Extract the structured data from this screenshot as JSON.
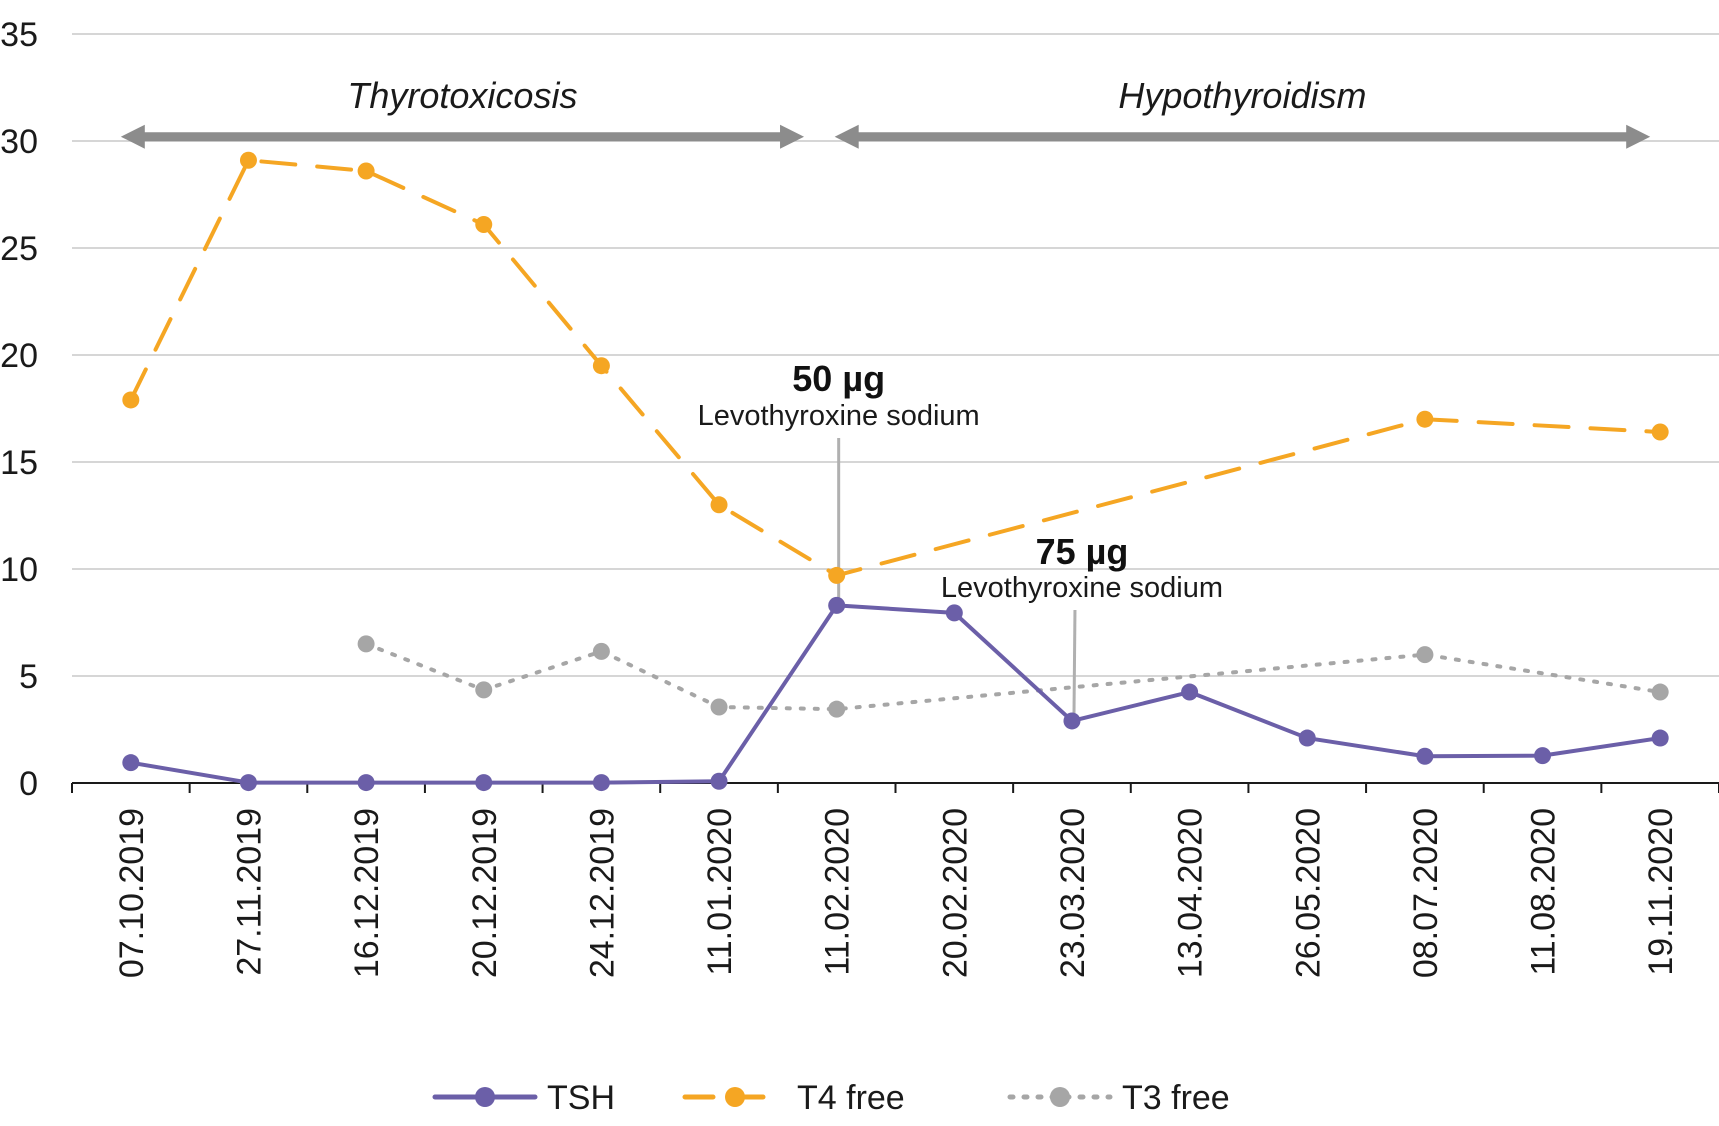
{
  "chart_data": {
    "type": "line",
    "ylim": [
      0,
      35
    ],
    "yticks": [
      "0",
      "5",
      "10",
      "15",
      "20",
      "25",
      "30",
      "35"
    ],
    "grid": true,
    "categories": [
      "07.10.2019",
      "27.11.2019",
      "16.12.2019",
      "20.12.2019",
      "24.12.2019",
      "11.01.2020",
      "11.02.2020",
      "20.02.2020",
      "23.03.2020",
      "13.04.2020",
      "26.05.2020",
      "08.07.2020",
      "11.08.2020",
      "19.11.2020"
    ],
    "series": [
      {
        "name": "TSH",
        "color": "#6b5fa8",
        "style": "solid",
        "values": [
          0.95,
          0.02,
          0.02,
          0.02,
          0.02,
          0.08,
          8.3,
          7.95,
          2.9,
          4.25,
          2.1,
          1.25,
          1.28,
          2.1
        ]
      },
      {
        "name": "T4 free",
        "color": "#f5a623",
        "style": "dashed",
        "values": [
          17.9,
          29.1,
          28.6,
          26.1,
          19.5,
          13.0,
          9.7,
          null,
          null,
          null,
          null,
          17.0,
          null,
          16.4
        ]
      },
      {
        "name": "T3 free",
        "color": "#a6a6a6",
        "style": "dotted",
        "values": [
          null,
          null,
          6.5,
          4.35,
          6.15,
          3.55,
          3.45,
          null,
          null,
          null,
          null,
          6.0,
          null,
          4.25
        ]
      }
    ],
    "legend_position": "bottom",
    "periods": [
      {
        "label": "Thyrotoxicosis",
        "from": "07.10.2019",
        "to": "11.01.2020"
      },
      {
        "label": "Hypothyroidism",
        "from": "11.02.2020",
        "to": "19.11.2020"
      }
    ],
    "annotations": [
      {
        "dose": "50 µg",
        "drug": "Levothyroxine sodium",
        "at": "11.02.2020"
      },
      {
        "dose": "75 µg",
        "drug": "Levothyroxine sodium",
        "at": "23.03.2020"
      }
    ]
  },
  "colors": {
    "grid": "#c8c8c8",
    "axis": "#1a1a1a",
    "period_arrow": "#8c8c8c",
    "annotation_line": "#b0b0b0"
  }
}
